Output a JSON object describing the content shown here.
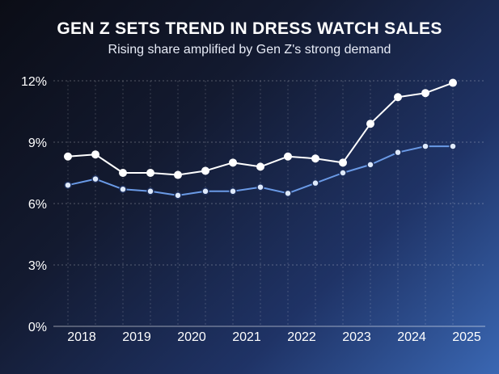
{
  "chart_data": {
    "type": "line",
    "title": "GEN Z SETS TREND IN DRESS WATCH SALES",
    "subtitle": "Rising share amplified by Gen Z's strong demand",
    "xlabel": "",
    "ylabel": "",
    "ylim": [
      0,
      12
    ],
    "y_ticks": [
      "0%",
      "3%",
      "6%",
      "9%",
      "12%"
    ],
    "x_tick_labels": [
      "2018",
      "2019",
      "2020",
      "2021",
      "2022",
      "2023",
      "2024",
      "2025"
    ],
    "x": [
      2017.75,
      2018.25,
      2018.75,
      2019.25,
      2019.75,
      2020.25,
      2020.75,
      2021.25,
      2021.75,
      2022.25,
      2022.75,
      2023.25,
      2023.75,
      2024.25,
      2024.75
    ],
    "series": [
      {
        "color": "#ffffff",
        "marker_fill": "#ffffff",
        "values": [
          8.3,
          8.4,
          7.5,
          7.5,
          7.4,
          7.6,
          8.0,
          7.8,
          8.3,
          8.2,
          8.0,
          9.9,
          11.2,
          11.4,
          11.9
        ]
      },
      {
        "color": "#6a9ae6",
        "marker_fill": "#dfeafb",
        "values": [
          6.9,
          7.2,
          6.7,
          6.6,
          6.4,
          6.6,
          6.6,
          6.8,
          6.5,
          7.0,
          7.5,
          7.9,
          8.5,
          8.8,
          8.8
        ]
      }
    ],
    "grid": true,
    "legend": "none"
  }
}
